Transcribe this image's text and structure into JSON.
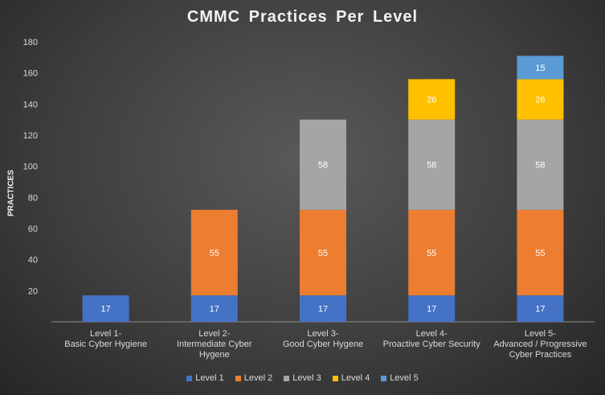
{
  "chart_data": {
    "type": "bar",
    "stacked": true,
    "title": "CMMC  Practices  Per Level",
    "xlabel": "",
    "ylabel": "PRACTICES",
    "ylim": [
      0,
      180
    ],
    "yticks": [
      20,
      40,
      60,
      80,
      100,
      120,
      140,
      160,
      180
    ],
    "grid": false,
    "legend_position": "bottom",
    "categories": [
      [
        "Level 1-",
        "Basic Cyber Hygiene"
      ],
      [
        "Level 2-",
        "Intermediate Cyber",
        "Hygene"
      ],
      [
        "Level 3-",
        "Good Cyber Hygene"
      ],
      [
        "Level 4-",
        "Proactive Cyber Security"
      ],
      [
        "Level 5-",
        "Advanced / Progressive",
        "Cyber Practices"
      ]
    ],
    "series": [
      {
        "name": "Level 1",
        "color": "#4472c4",
        "values": [
          17,
          17,
          17,
          17,
          17
        ]
      },
      {
        "name": "Level 2",
        "color": "#ed7d31",
        "values": [
          null,
          55,
          55,
          55,
          55
        ]
      },
      {
        "name": "Level 3",
        "color": "#a5a5a5",
        "values": [
          null,
          null,
          58,
          58,
          58
        ]
      },
      {
        "name": "Level 4",
        "color": "#ffc000",
        "values": [
          null,
          null,
          null,
          26,
          26
        ]
      },
      {
        "name": "Level 5",
        "color": "#5b9bd5",
        "values": [
          null,
          null,
          null,
          null,
          15
        ]
      }
    ]
  }
}
